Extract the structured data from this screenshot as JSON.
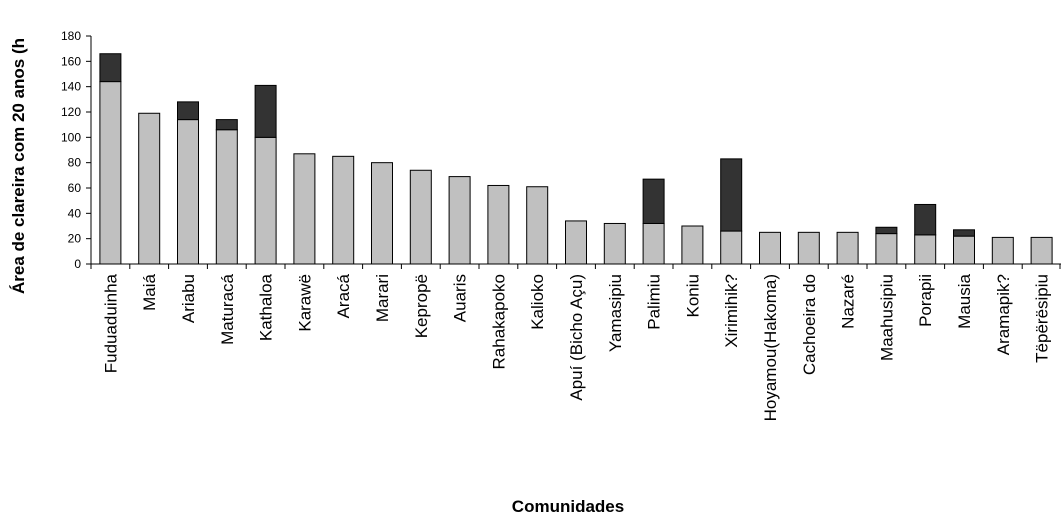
{
  "chart_data": {
    "type": "bar",
    "stacked": true,
    "title": "",
    "xlabel": "Comunidades",
    "ylabel": "Área de clareira com 20 anos (h",
    "ylim": [
      0,
      180
    ],
    "yticks": [
      0,
      20,
      40,
      60,
      80,
      100,
      120,
      140,
      160,
      180
    ],
    "grid": false,
    "categories": [
      "Fuduaduinha",
      "Maiá",
      "Ariabu",
      "Maturacá",
      "Kathaloa",
      "Karawë",
      "Aracá",
      "Marari",
      "Kepropë",
      "Auaris",
      "Rahakapoko",
      "Kalioko",
      "Apuí (Bicho Açu)",
      "Yamasipiu",
      "Palimiu",
      "Koniu",
      "Xirimihik?",
      "Hoyamou(Hakoma)",
      "Cachoeira do",
      "Nazaré",
      "Maahusipiu",
      "Porapii",
      "Mausia",
      "Aramapik?",
      "Tëpërësipiu"
    ],
    "series": [
      {
        "color": "#c0c0c0",
        "values": [
          144,
          119,
          114,
          106,
          100,
          87,
          85,
          80,
          74,
          69,
          62,
          61,
          34,
          32,
          32,
          30,
          26,
          25,
          25,
          25,
          24,
          23,
          22,
          21,
          21
        ]
      },
      {
        "color": "#333333",
        "values": [
          22,
          0,
          14,
          8,
          41,
          0,
          0,
          0,
          0,
          0,
          0,
          0,
          0,
          0,
          35,
          0,
          57,
          0,
          0,
          0,
          5,
          24,
          5,
          0,
          0
        ]
      }
    ]
  }
}
